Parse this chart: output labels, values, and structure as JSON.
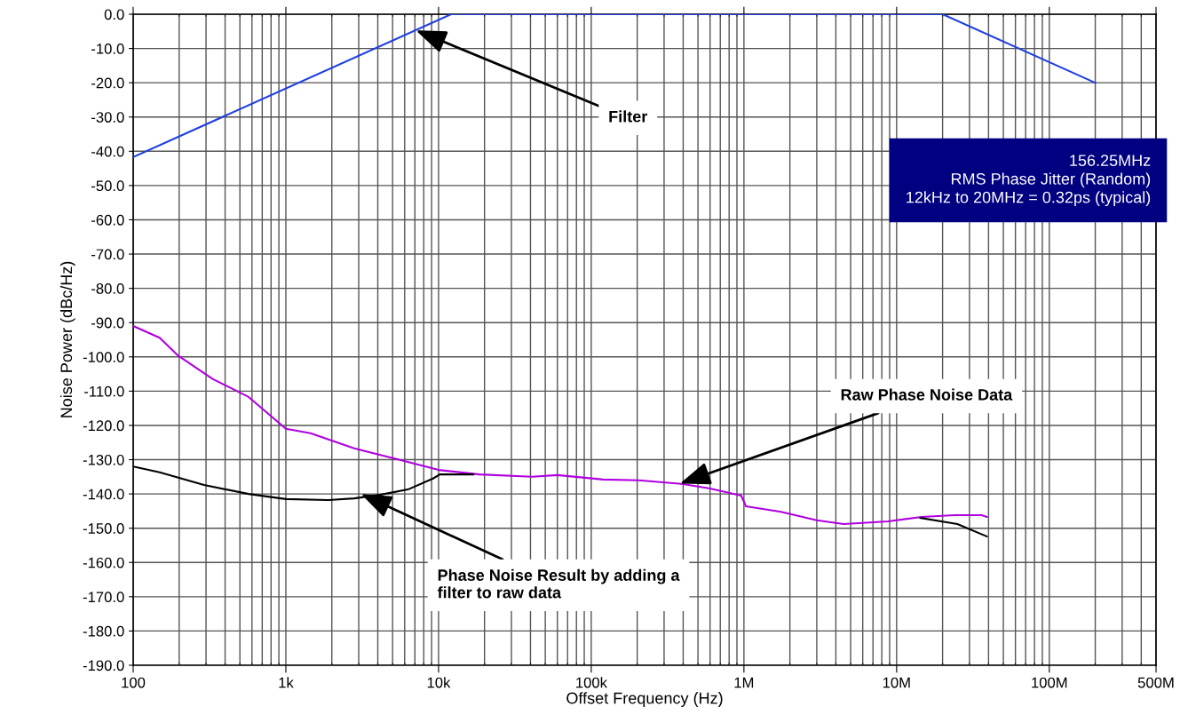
{
  "chart_data": {
    "type": "line",
    "xlabel": "Offset Frequency (Hz)",
    "ylabel": "Noise Power (dBc/Hz)",
    "log": "x",
    "grid": true,
    "legend": false,
    "marker": "none",
    "line_style": "solid",
    "xlim": [
      100,
      500000000
    ],
    "ylim": [
      -190,
      0
    ],
    "xticks": [
      {
        "value": 100,
        "label": "100"
      },
      {
        "value": 1000,
        "label": "1k"
      },
      {
        "value": 10000,
        "label": "10k"
      },
      {
        "value": 100000,
        "label": "100k"
      },
      {
        "value": 1000000,
        "label": "1M"
      },
      {
        "value": 10000000,
        "label": "10M"
      },
      {
        "value": 100000000,
        "label": "100M"
      },
      {
        "value": 500000000,
        "label": "500M"
      }
    ],
    "yticks": [
      {
        "value": 0,
        "label": "0.0"
      },
      {
        "value": -10,
        "label": "-10.0"
      },
      {
        "value": -20,
        "label": "-20.0"
      },
      {
        "value": -30,
        "label": "-30.0"
      },
      {
        "value": -40,
        "label": "-40.0"
      },
      {
        "value": -50,
        "label": "-50.0"
      },
      {
        "value": -60,
        "label": "-60.0"
      },
      {
        "value": -70,
        "label": "-70.0"
      },
      {
        "value": -80,
        "label": "-80.0"
      },
      {
        "value": -90,
        "label": "-90.0"
      },
      {
        "value": -100,
        "label": "-100.0"
      },
      {
        "value": -110,
        "label": "-110.0"
      },
      {
        "value": -120,
        "label": "-120.0"
      },
      {
        "value": -130,
        "label": "-130.0"
      },
      {
        "value": -140,
        "label": "-140.0"
      },
      {
        "value": -150,
        "label": "-150.0"
      },
      {
        "value": -160,
        "label": "-160.0"
      },
      {
        "value": -170,
        "label": "-170.0"
      },
      {
        "value": -180,
        "label": "-180.0"
      },
      {
        "value": -190,
        "label": "-190.0"
      }
    ],
    "series": [
      {
        "color": "#2040e0",
        "x": [
          100,
          12100,
          20000000,
          200000000
        ],
        "values": [
          -41.7,
          0,
          0,
          -20
        ]
      },
      {
        "color": "#b000e0",
        "x": [
          100,
          149,
          195,
          333,
          570,
          1000,
          1450,
          2800,
          5500,
          10000,
          18500,
          41000,
          60000,
          120000,
          205000,
          400000,
          600000,
          960000,
          1030000,
          1750000,
          3000000,
          4500000,
          8800000,
          14600000,
          24000000,
          36000000,
          39000000
        ],
        "values": [
          -91,
          -94.4,
          -99.5,
          -106.5,
          -111.7,
          -121,
          -122.3,
          -126.7,
          -130,
          -133,
          -134.3,
          -135,
          -134.5,
          -135.8,
          -136,
          -137.1,
          -138.4,
          -140.5,
          -143.6,
          -145.2,
          -147.7,
          -148.8,
          -148,
          -146.7,
          -146.2,
          -146.2,
          -146.7
        ]
      },
      {
        "color": "#000000",
        "x": [
          100,
          149,
          291,
          570,
          1000,
          1900,
          2800,
          4200,
          6300,
          9200,
          10200,
          16900,
          17000,
          14300000,
          25000000,
          39000000
        ],
        "values": [
          -132,
          -133.7,
          -137.4,
          -140,
          -141.5,
          -141.8,
          -141.3,
          -140.2,
          -138.7,
          -135.5,
          -134.3,
          -134.3,
          null,
          -147,
          -148.8,
          -152.4
        ]
      }
    ],
    "annotations": [
      {
        "text": "Filter",
        "x": 7100,
        "y": -4.7
      },
      {
        "text": "Raw Phase Noise Data",
        "x": 380000,
        "y": -137
      },
      {
        "text": "Phase Noise Result by adding a\nfilter to raw data",
        "x": 3100,
        "y": -140
      },
      "156.25MHz\nRMS Phase Jitter (Random)\n12kHz to 20MHz = 0.32ps (typical)"
    ]
  }
}
